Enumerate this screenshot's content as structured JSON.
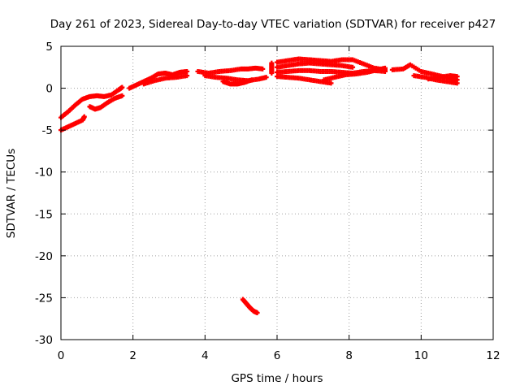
{
  "chart_data": {
    "type": "scatter",
    "title": "Day 261 of 2023, Sidereal Day-to-day VTEC variation (SDTVAR) for receiver p427",
    "xlabel": "GPS time / hours",
    "ylabel": "SDTVAR / TECUs",
    "xlim": [
      0,
      12
    ],
    "ylim": [
      -30,
      5
    ],
    "xticks": [
      "0",
      "2",
      "4",
      "6",
      "8",
      "10",
      "12"
    ],
    "yticks": [
      "5",
      "0",
      "-5",
      "-10",
      "-15",
      "-20",
      "-25",
      "-30"
    ],
    "grid": true,
    "series": [
      {
        "color": "#ff0000",
        "tracks": [
          [
            [
              0.0,
              -3.5
            ],
            [
              0.2,
              -2.8
            ],
            [
              0.4,
              -2.0
            ],
            [
              0.6,
              -1.3
            ],
            [
              0.8,
              -1.0
            ],
            [
              1.0,
              -0.9
            ],
            [
              1.2,
              -1.0
            ],
            [
              1.4,
              -0.8
            ],
            [
              1.6,
              -0.2
            ],
            [
              1.7,
              0.1
            ]
          ],
          [
            [
              0.0,
              -5.0
            ],
            [
              0.2,
              -4.6
            ],
            [
              0.4,
              -4.2
            ],
            [
              0.6,
              -3.8
            ],
            [
              0.65,
              -3.4
            ]
          ],
          [
            [
              0.8,
              -2.2
            ],
            [
              0.95,
              -2.5
            ],
            [
              1.1,
              -2.3
            ],
            [
              1.3,
              -1.7
            ],
            [
              1.5,
              -1.2
            ],
            [
              1.7,
              -0.9
            ]
          ],
          [
            [
              1.9,
              0.0
            ],
            [
              2.1,
              0.4
            ],
            [
              2.3,
              0.8
            ],
            [
              2.5,
              1.2
            ],
            [
              2.7,
              1.7
            ],
            [
              2.9,
              1.8
            ],
            [
              3.1,
              1.6
            ],
            [
              3.3,
              1.9
            ],
            [
              3.5,
              2.0
            ]
          ],
          [
            [
              2.3,
              0.5
            ],
            [
              2.6,
              0.9
            ],
            [
              2.9,
              1.2
            ],
            [
              3.2,
              1.3
            ],
            [
              3.5,
              1.5
            ]
          ],
          [
            [
              3.8,
              2.0
            ],
            [
              4.1,
              1.8
            ],
            [
              4.4,
              2.0
            ],
            [
              4.7,
              2.1
            ],
            [
              5.0,
              2.3
            ],
            [
              5.2,
              2.3
            ],
            [
              5.4,
              2.4
            ],
            [
              5.6,
              2.3
            ]
          ],
          [
            [
              4.0,
              1.5
            ],
            [
              4.3,
              1.3
            ],
            [
              4.6,
              1.2
            ],
            [
              4.9,
              1.0
            ],
            [
              5.2,
              0.9
            ],
            [
              5.5,
              1.1
            ],
            [
              5.7,
              1.3
            ]
          ],
          [
            [
              4.5,
              0.8
            ],
            [
              4.7,
              0.5
            ],
            [
              4.9,
              0.5
            ],
            [
              5.1,
              0.7
            ],
            [
              5.3,
              1.0
            ]
          ],
          [
            [
              5.85,
              1.8
            ],
            [
              5.85,
              2.4
            ],
            [
              5.85,
              3.0
            ]
          ],
          [
            [
              6.0,
              3.1
            ],
            [
              6.3,
              3.3
            ],
            [
              6.6,
              3.5
            ],
            [
              6.9,
              3.4
            ],
            [
              7.2,
              3.3
            ],
            [
              7.5,
              3.2
            ],
            [
              7.8,
              3.4
            ],
            [
              8.1,
              3.4
            ],
            [
              8.4,
              2.9
            ],
            [
              8.7,
              2.4
            ],
            [
              9.0,
              2.2
            ]
          ],
          [
            [
              6.0,
              2.5
            ],
            [
              6.3,
              2.7
            ],
            [
              6.6,
              2.9
            ],
            [
              6.9,
              3.0
            ],
            [
              7.2,
              2.9
            ],
            [
              7.5,
              2.8
            ],
            [
              7.8,
              2.7
            ],
            [
              8.1,
              2.5
            ]
          ],
          [
            [
              6.0,
              1.9
            ],
            [
              6.3,
              2.0
            ],
            [
              6.6,
              2.1
            ],
            [
              6.9,
              2.1
            ],
            [
              7.2,
              2.0
            ],
            [
              7.5,
              2.0
            ],
            [
              7.8,
              1.9
            ],
            [
              8.1,
              1.8
            ],
            [
              8.4,
              2.0
            ],
            [
              8.7,
              2.1
            ],
            [
              9.0,
              2.0
            ]
          ],
          [
            [
              6.0,
              1.4
            ],
            [
              6.3,
              1.3
            ],
            [
              6.6,
              1.2
            ],
            [
              6.9,
              1.0
            ],
            [
              7.2,
              0.8
            ],
            [
              7.5,
              0.6
            ]
          ],
          [
            [
              7.3,
              1.0
            ],
            [
              7.6,
              1.3
            ],
            [
              7.9,
              1.6
            ],
            [
              8.2,
              1.7
            ],
            [
              8.5,
              1.9
            ],
            [
              8.8,
              2.2
            ],
            [
              9.0,
              2.4
            ]
          ],
          [
            [
              9.2,
              2.2
            ],
            [
              9.5,
              2.3
            ],
            [
              9.7,
              2.8
            ],
            [
              10.0,
              2.0
            ],
            [
              10.3,
              1.7
            ],
            [
              10.6,
              1.4
            ],
            [
              10.9,
              1.0
            ],
            [
              11.0,
              1.0
            ]
          ],
          [
            [
              9.8,
              1.5
            ],
            [
              10.1,
              1.3
            ],
            [
              10.4,
              1.0
            ],
            [
              10.7,
              0.8
            ],
            [
              11.0,
              0.6
            ]
          ],
          [
            [
              10.2,
              1.1
            ],
            [
              10.5,
              1.3
            ],
            [
              10.8,
              1.5
            ],
            [
              11.0,
              1.4
            ]
          ],
          [
            [
              5.05,
              -25.2
            ],
            [
              5.15,
              -25.7
            ],
            [
              5.25,
              -26.2
            ],
            [
              5.35,
              -26.6
            ],
            [
              5.45,
              -26.8
            ]
          ]
        ]
      }
    ]
  }
}
